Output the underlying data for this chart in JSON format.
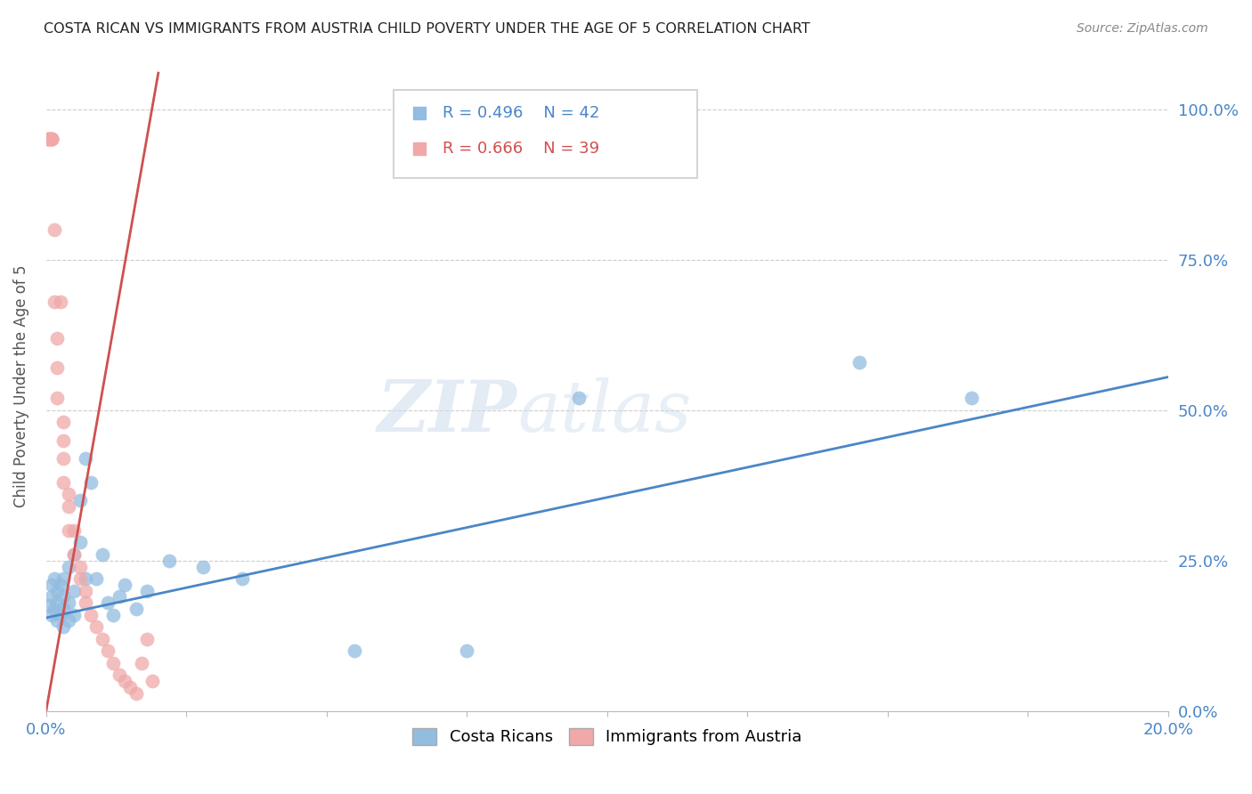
{
  "title": "COSTA RICAN VS IMMIGRANTS FROM AUSTRIA CHILD POVERTY UNDER THE AGE OF 5 CORRELATION CHART",
  "source": "Source: ZipAtlas.com",
  "ylabel": "Child Poverty Under the Age of 5",
  "right_yticklabels": [
    "0.0%",
    "25.0%",
    "50.0%",
    "75.0%",
    "100.0%"
  ],
  "legend_blue_r": "R = 0.496",
  "legend_blue_n": "N = 42",
  "legend_pink_r": "R = 0.666",
  "legend_pink_n": "N = 39",
  "legend1_label": "Costa Ricans",
  "legend2_label": "Immigrants from Austria",
  "blue_color": "#92bce0",
  "pink_color": "#f0a8a8",
  "blue_line_color": "#4a86c8",
  "pink_line_color": "#d05050",
  "watermark_zip": "ZIP",
  "watermark_atlas": "atlas",
  "blue_scatter_x": [
    0.0005,
    0.001,
    0.001,
    0.001,
    0.0015,
    0.0015,
    0.002,
    0.002,
    0.002,
    0.0025,
    0.0025,
    0.003,
    0.003,
    0.003,
    0.003,
    0.004,
    0.004,
    0.004,
    0.005,
    0.005,
    0.005,
    0.006,
    0.006,
    0.007,
    0.007,
    0.008,
    0.009,
    0.01,
    0.011,
    0.012,
    0.013,
    0.014,
    0.016,
    0.018,
    0.022,
    0.028,
    0.035,
    0.055,
    0.075,
    0.095,
    0.145,
    0.165
  ],
  "blue_scatter_y": [
    0.175,
    0.16,
    0.19,
    0.21,
    0.17,
    0.22,
    0.15,
    0.18,
    0.2,
    0.16,
    0.21,
    0.14,
    0.17,
    0.19,
    0.22,
    0.15,
    0.18,
    0.24,
    0.16,
    0.2,
    0.26,
    0.28,
    0.35,
    0.22,
    0.42,
    0.38,
    0.22,
    0.26,
    0.18,
    0.16,
    0.19,
    0.21,
    0.17,
    0.2,
    0.25,
    0.24,
    0.22,
    0.1,
    0.1,
    0.52,
    0.58,
    0.52
  ],
  "pink_scatter_x": [
    0.0003,
    0.0003,
    0.0005,
    0.0005,
    0.001,
    0.001,
    0.001,
    0.001,
    0.0015,
    0.0015,
    0.002,
    0.002,
    0.002,
    0.0025,
    0.003,
    0.003,
    0.003,
    0.003,
    0.004,
    0.004,
    0.004,
    0.005,
    0.005,
    0.006,
    0.006,
    0.007,
    0.007,
    0.008,
    0.009,
    0.01,
    0.011,
    0.012,
    0.013,
    0.014,
    0.015,
    0.016,
    0.017,
    0.018,
    0.019
  ],
  "pink_scatter_y": [
    0.95,
    0.95,
    0.95,
    0.95,
    0.95,
    0.95,
    0.95,
    0.95,
    0.8,
    0.68,
    0.62,
    0.57,
    0.52,
    0.68,
    0.48,
    0.45,
    0.42,
    0.38,
    0.36,
    0.34,
    0.3,
    0.3,
    0.26,
    0.24,
    0.22,
    0.2,
    0.18,
    0.16,
    0.14,
    0.12,
    0.1,
    0.08,
    0.06,
    0.05,
    0.04,
    0.03,
    0.08,
    0.12,
    0.05
  ],
  "xmin": 0.0,
  "xmax": 0.2,
  "ymin": 0.0,
  "ymax": 1.08,
  "blue_line_x": [
    0.0,
    0.2
  ],
  "blue_line_y": [
    0.155,
    0.555
  ],
  "pink_line_x": [
    0.0,
    0.02
  ],
  "pink_line_y": [
    0.0,
    1.06
  ]
}
